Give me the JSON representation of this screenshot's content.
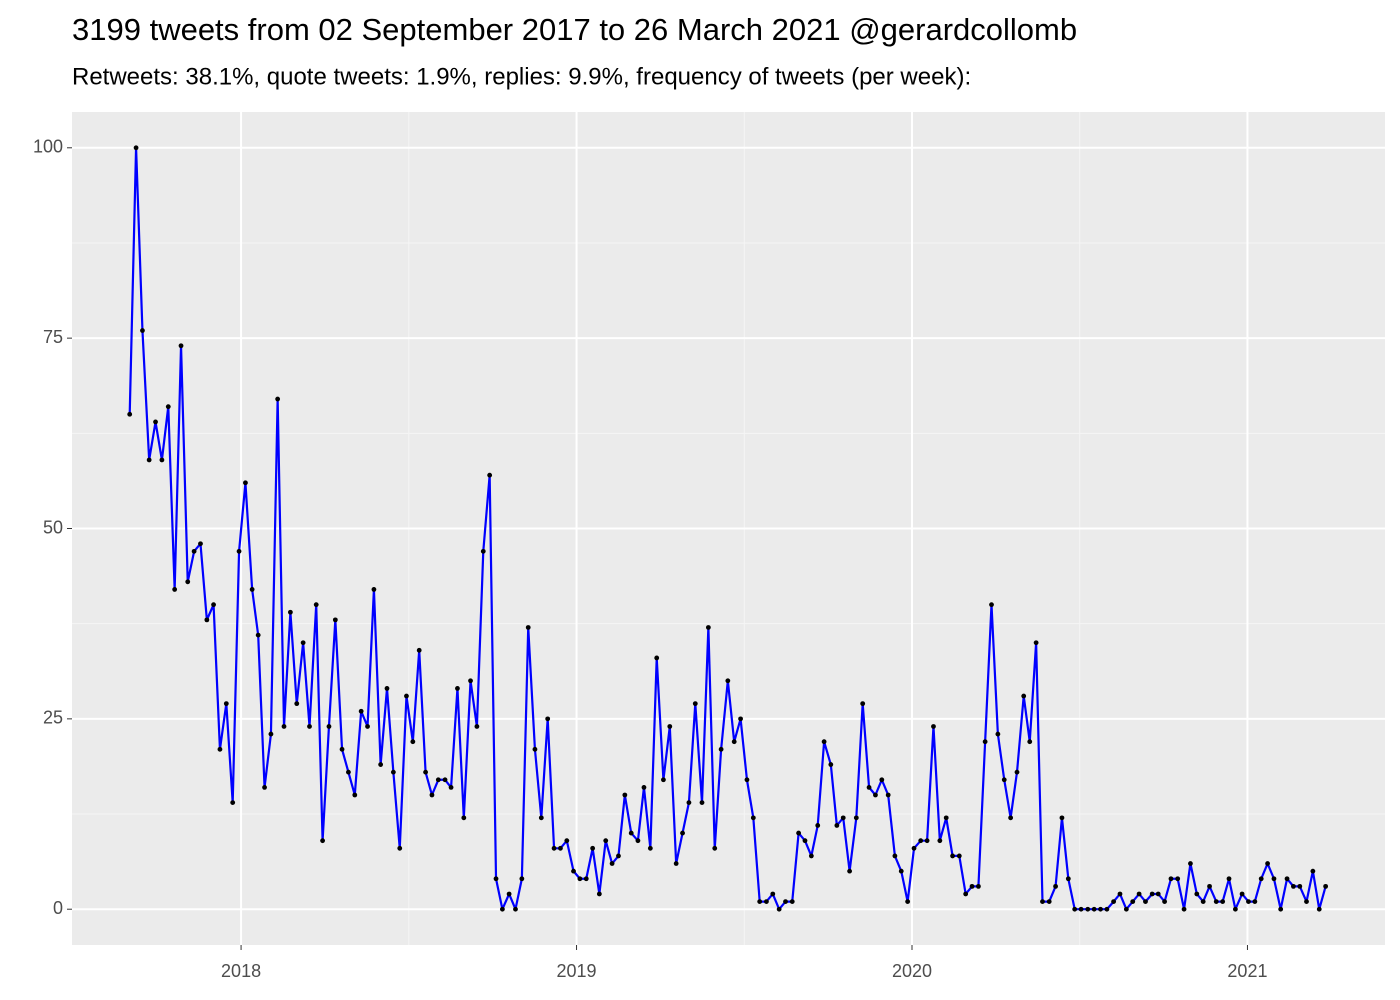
{
  "chart_data": {
    "type": "line",
    "title": "3199 tweets from 02 September 2017 to 26 March 2021 @gerardcollomb",
    "subtitle": "Retweets: 38.1%, quote tweets: 1.9%, replies: 9.9%, frequency of tweets (per week):",
    "color": "#0000ff",
    "point_color": "#000000",
    "grid": true,
    "xlim": [
      2017.496,
      2021.41
    ],
    "xticks": [
      2018,
      2019,
      2020,
      2021
    ],
    "ylim": [
      -4.7,
      104.7
    ],
    "yticks": [
      0,
      25,
      50,
      75,
      100
    ],
    "x": [
      2017.668,
      2017.687,
      2017.706,
      2017.726,
      2017.745,
      2017.764,
      2017.783,
      2017.802,
      2017.821,
      2017.841,
      2017.86,
      2017.879,
      2017.898,
      2017.918,
      2017.937,
      2017.956,
      2017.975,
      2017.994,
      2018.013,
      2018.033,
      2018.051,
      2018.07,
      2018.089,
      2018.109,
      2018.128,
      2018.147,
      2018.166,
      2018.185,
      2018.204,
      2018.224,
      2018.243,
      2018.262,
      2018.281,
      2018.301,
      2018.32,
      2018.339,
      2018.358,
      2018.377,
      2018.396,
      2018.416,
      2018.435,
      2018.454,
      2018.473,
      2018.493,
      2018.512,
      2018.531,
      2018.55,
      2018.569,
      2018.588,
      2018.608,
      2018.626,
      2018.645,
      2018.664,
      2018.684,
      2018.703,
      2018.722,
      2018.741,
      2018.76,
      2018.779,
      2018.799,
      2018.818,
      2018.837,
      2018.856,
      2018.876,
      2018.895,
      2018.914,
      2018.933,
      2018.952,
      2018.971,
      2018.991,
      2019.01,
      2019.029,
      2019.048,
      2019.068,
      2019.087,
      2019.106,
      2019.125,
      2019.144,
      2019.163,
      2019.183,
      2019.201,
      2019.22,
      2019.239,
      2019.259,
      2019.278,
      2019.297,
      2019.316,
      2019.335,
      2019.354,
      2019.374,
      2019.393,
      2019.412,
      2019.431,
      2019.451,
      2019.47,
      2019.489,
      2019.508,
      2019.527,
      2019.546,
      2019.566,
      2019.585,
      2019.604,
      2019.623,
      2019.643,
      2019.662,
      2019.681,
      2019.7,
      2019.719,
      2019.738,
      2019.758,
      2019.776,
      2019.795,
      2019.814,
      2019.834,
      2019.853,
      2019.872,
      2019.891,
      2019.91,
      2019.929,
      2019.949,
      2019.968,
      2019.987,
      2020.006,
      2020.026,
      2020.045,
      2020.064,
      2020.083,
      2020.102,
      2020.121,
      2020.141,
      2020.16,
      2020.179,
      2020.198,
      2020.218,
      2020.237,
      2020.256,
      2020.275,
      2020.294,
      2020.313,
      2020.333,
      2020.351,
      2020.37,
      2020.389,
      2020.409,
      2020.428,
      2020.447,
      2020.466,
      2020.485,
      2020.504,
      2020.524,
      2020.543,
      2020.562,
      2020.581,
      2020.601,
      2020.62,
      2020.639,
      2020.658,
      2020.677,
      2020.696,
      2020.716,
      2020.734,
      2020.753,
      2020.772,
      2020.792,
      2020.811,
      2020.83,
      2020.849,
      2020.868,
      2020.887,
      2020.907,
      2020.926,
      2020.945,
      2020.964,
      2020.984,
      2021.003,
      2021.022,
      2021.041,
      2021.06,
      2021.079,
      2021.099,
      2021.118,
      2021.137,
      2021.156,
      2021.176,
      2021.195,
      2021.214,
      2021.233
    ],
    "values": [
      65,
      100,
      76,
      59,
      64,
      59,
      66,
      42,
      74,
      43,
      47,
      48,
      38,
      40,
      21,
      27,
      14,
      47,
      56,
      42,
      36,
      16,
      23,
      67,
      24,
      39,
      27,
      35,
      24,
      40,
      9,
      24,
      38,
      21,
      18,
      15,
      26,
      24,
      42,
      19,
      29,
      18,
      8,
      28,
      22,
      34,
      18,
      15,
      17,
      17,
      16,
      29,
      12,
      30,
      24,
      47,
      57,
      4,
      0,
      2,
      0,
      4,
      37,
      21,
      12,
      25,
      8,
      8,
      9,
      5,
      4,
      4,
      8,
      2,
      9,
      6,
      7,
      15,
      10,
      9,
      16,
      8,
      33,
      17,
      24,
      6,
      10,
      14,
      27,
      14,
      37,
      8,
      21,
      30,
      22,
      25,
      17,
      12,
      1,
      1,
      2,
      0,
      1,
      1,
      10,
      9,
      7,
      11,
      22,
      19,
      11,
      12,
      5,
      12,
      27,
      16,
      15,
      17,
      15,
      7,
      5,
      1,
      8,
      9,
      9,
      24,
      9,
      12,
      7,
      7,
      2,
      3,
      3,
      22,
      40,
      23,
      17,
      12,
      18,
      28,
      22,
      35,
      1,
      1,
      3,
      12,
      4,
      0,
      0,
      0,
      0,
      0,
      0,
      1,
      2,
      0,
      1,
      2,
      1,
      2,
      2,
      1,
      4,
      4,
      0,
      6,
      2,
      1,
      3,
      1,
      1,
      4,
      0,
      2,
      1,
      1,
      4,
      6,
      4,
      0,
      4,
      3,
      3,
      1,
      5,
      0,
      3
    ]
  }
}
